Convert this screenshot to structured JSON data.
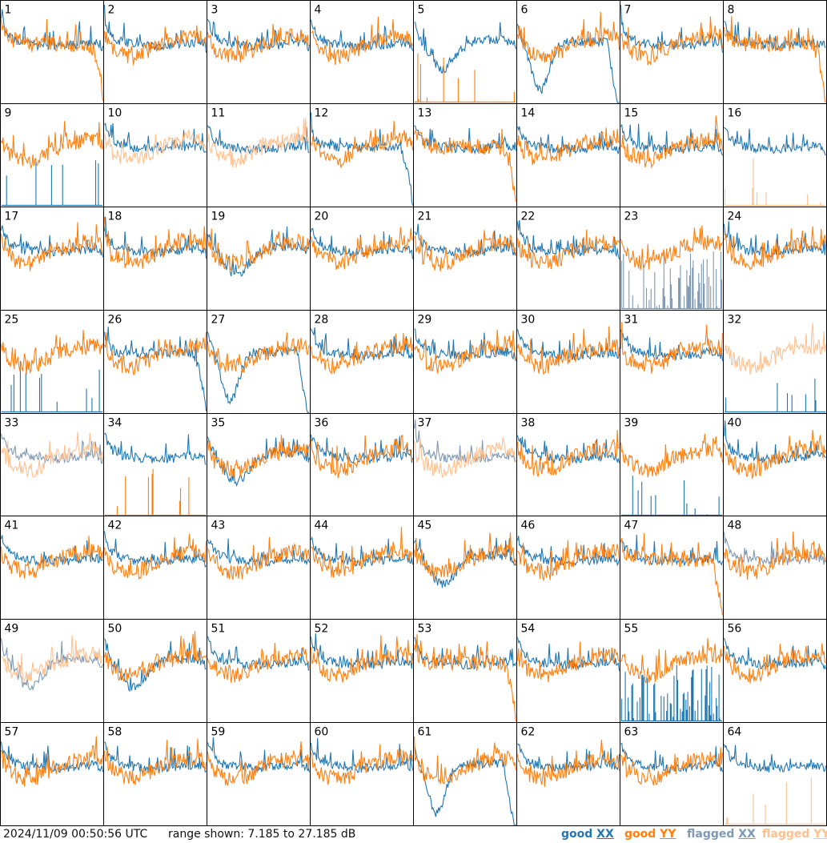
{
  "chart_data": {
    "type": "line",
    "grid": {
      "rows": 8,
      "cols": 8
    },
    "panels": [
      {
        "label": "1",
        "xx": "good",
        "yy": "good",
        "xx_shape": "flat",
        "yy_shape": "dropend"
      },
      {
        "label": "2",
        "xx": "good",
        "yy": "good",
        "xx_shape": "flat",
        "yy_shape": "noisy"
      },
      {
        "label": "3",
        "xx": "good",
        "yy": "good",
        "xx_shape": "flat",
        "yy_shape": "noisy"
      },
      {
        "label": "4",
        "xx": "good",
        "yy": "good",
        "xx_shape": "flat",
        "yy_shape": "noisy"
      },
      {
        "label": "5",
        "xx": "good",
        "yy": "good",
        "xx_shape": "bowl",
        "yy_shape": "spikes"
      },
      {
        "label": "6",
        "xx": "good",
        "yy": "good",
        "xx_shape": "deep",
        "yy_shape": "noisy"
      },
      {
        "label": "7",
        "xx": "good",
        "yy": "good",
        "xx_shape": "flat",
        "yy_shape": "noisy"
      },
      {
        "label": "8",
        "xx": "good",
        "yy": "good",
        "xx_shape": "flat",
        "yy_shape": "dropend"
      },
      {
        "label": "9",
        "xx": "good",
        "yy": "good",
        "xx_shape": "spikes",
        "yy_shape": "noisy"
      },
      {
        "label": "10",
        "xx": "good",
        "yy": "flagged",
        "xx_shape": "flat",
        "yy_shape": "noisy"
      },
      {
        "label": "11",
        "xx": "good",
        "yy": "flagged",
        "xx_shape": "flat",
        "yy_shape": "noisy"
      },
      {
        "label": "12",
        "xx": "good",
        "yy": "good",
        "xx_shape": "dropend",
        "yy_shape": "noisy"
      },
      {
        "label": "13",
        "xx": "good",
        "yy": "good",
        "xx_shape": "flat",
        "yy_shape": "dropend"
      },
      {
        "label": "14",
        "xx": "good",
        "yy": "good",
        "xx_shape": "flat",
        "yy_shape": "noisy"
      },
      {
        "label": "15",
        "xx": "good",
        "yy": "good",
        "xx_shape": "flat",
        "yy_shape": "noisy"
      },
      {
        "label": "16",
        "xx": "good",
        "yy": "flagged",
        "xx_shape": "flat",
        "yy_shape": "spikes"
      },
      {
        "label": "17",
        "xx": "good",
        "yy": "good",
        "xx_shape": "flat",
        "yy_shape": "noisy"
      },
      {
        "label": "18",
        "xx": "good",
        "yy": "good",
        "xx_shape": "flat",
        "yy_shape": "noisy"
      },
      {
        "label": "19",
        "xx": "good",
        "yy": "good",
        "xx_shape": "bowl",
        "yy_shape": "noisy"
      },
      {
        "label": "20",
        "xx": "good",
        "yy": "good",
        "xx_shape": "flat",
        "yy_shape": "noisy"
      },
      {
        "label": "21",
        "xx": "good",
        "yy": "good",
        "xx_shape": "flat",
        "yy_shape": "noisy"
      },
      {
        "label": "22",
        "xx": "good",
        "yy": "good",
        "xx_shape": "flat",
        "yy_shape": "noisy"
      },
      {
        "label": "23",
        "xx": "flagged",
        "yy": "good",
        "xx_shape": "junk",
        "yy_shape": "noisy"
      },
      {
        "label": "24",
        "xx": "good",
        "yy": "good",
        "xx_shape": "flat",
        "yy_shape": "noisy"
      },
      {
        "label": "25",
        "xx": "good",
        "yy": "good",
        "xx_shape": "spikes",
        "yy_shape": "noisy"
      },
      {
        "label": "26",
        "xx": "good",
        "yy": "good",
        "xx_shape": "dropend",
        "yy_shape": "noisy"
      },
      {
        "label": "27",
        "xx": "good",
        "yy": "good",
        "xx_shape": "deep",
        "yy_shape": "noisy"
      },
      {
        "label": "28",
        "xx": "good",
        "yy": "good",
        "xx_shape": "flat",
        "yy_shape": "noisy"
      },
      {
        "label": "29",
        "xx": "good",
        "yy": "good",
        "xx_shape": "flat",
        "yy_shape": "noisy"
      },
      {
        "label": "30",
        "xx": "good",
        "yy": "good",
        "xx_shape": "flat",
        "yy_shape": "noisy"
      },
      {
        "label": "31",
        "xx": "good",
        "yy": "good",
        "xx_shape": "flat",
        "yy_shape": "noisy"
      },
      {
        "label": "32",
        "xx": "good",
        "yy": "flagged",
        "xx_shape": "spikes",
        "yy_shape": "noisy"
      },
      {
        "label": "33",
        "xx": "flagged",
        "yy": "flagged",
        "xx_shape": "flat",
        "yy_shape": "noisy"
      },
      {
        "label": "34",
        "xx": "good",
        "yy": "good",
        "xx_shape": "flat",
        "yy_shape": "spikes"
      },
      {
        "label": "35",
        "xx": "good",
        "yy": "good",
        "xx_shape": "bowl",
        "yy_shape": "noisy"
      },
      {
        "label": "36",
        "xx": "good",
        "yy": "good",
        "xx_shape": "flat",
        "yy_shape": "noisy"
      },
      {
        "label": "37",
        "xx": "flagged",
        "yy": "flagged",
        "xx_shape": "flat",
        "yy_shape": "noisy"
      },
      {
        "label": "38",
        "xx": "good",
        "yy": "good",
        "xx_shape": "flat",
        "yy_shape": "noisy"
      },
      {
        "label": "39",
        "xx": "good",
        "yy": "good",
        "xx_shape": "spikes",
        "yy_shape": "noisy"
      },
      {
        "label": "40",
        "xx": "good",
        "yy": "good",
        "xx_shape": "flat",
        "yy_shape": "noisy"
      },
      {
        "label": "41",
        "xx": "good",
        "yy": "good",
        "xx_shape": "flat",
        "yy_shape": "noisy"
      },
      {
        "label": "42",
        "xx": "good",
        "yy": "good",
        "xx_shape": "flat",
        "yy_shape": "noisy"
      },
      {
        "label": "43",
        "xx": "good",
        "yy": "good",
        "xx_shape": "flat",
        "yy_shape": "noisy"
      },
      {
        "label": "44",
        "xx": "good",
        "yy": "good",
        "xx_shape": "flat",
        "yy_shape": "noisy"
      },
      {
        "label": "45",
        "xx": "good",
        "yy": "good",
        "xx_shape": "bowl",
        "yy_shape": "noisy"
      },
      {
        "label": "46",
        "xx": "good",
        "yy": "good",
        "xx_shape": "flat",
        "yy_shape": "noisy"
      },
      {
        "label": "47",
        "xx": "good",
        "yy": "good",
        "xx_shape": "flat",
        "yy_shape": "dropend"
      },
      {
        "label": "48",
        "xx": "flagged",
        "yy": "good",
        "xx_shape": "flat",
        "yy_shape": "noisy"
      },
      {
        "label": "49",
        "xx": "flagged",
        "yy": "flagged",
        "xx_shape": "bowl",
        "yy_shape": "noisy"
      },
      {
        "label": "50",
        "xx": "good",
        "yy": "good",
        "xx_shape": "bowl",
        "yy_shape": "noisy"
      },
      {
        "label": "51",
        "xx": "good",
        "yy": "good",
        "xx_shape": "flat",
        "yy_shape": "noisy"
      },
      {
        "label": "52",
        "xx": "good",
        "yy": "good",
        "xx_shape": "flat",
        "yy_shape": "noisy"
      },
      {
        "label": "53",
        "xx": "good",
        "yy": "good",
        "xx_shape": "flat",
        "yy_shape": "dropend"
      },
      {
        "label": "54",
        "xx": "good",
        "yy": "good",
        "xx_shape": "flat",
        "yy_shape": "noisy"
      },
      {
        "label": "55",
        "xx": "good",
        "yy": "good",
        "xx_shape": "junk",
        "yy_shape": "noisy"
      },
      {
        "label": "56",
        "xx": "good",
        "yy": "good",
        "xx_shape": "flat",
        "yy_shape": "noisy"
      },
      {
        "label": "57",
        "xx": "good",
        "yy": "good",
        "xx_shape": "flat",
        "yy_shape": "noisy"
      },
      {
        "label": "58",
        "xx": "good",
        "yy": "good",
        "xx_shape": "flat",
        "yy_shape": "noisy"
      },
      {
        "label": "59",
        "xx": "good",
        "yy": "good",
        "xx_shape": "flat",
        "yy_shape": "noisy"
      },
      {
        "label": "60",
        "xx": "good",
        "yy": "good",
        "xx_shape": "flat",
        "yy_shape": "noisy"
      },
      {
        "label": "61",
        "xx": "good",
        "yy": "good",
        "xx_shape": "deep",
        "yy_shape": "noisy"
      },
      {
        "label": "62",
        "xx": "good",
        "yy": "good",
        "xx_shape": "flat",
        "yy_shape": "noisy"
      },
      {
        "label": "63",
        "xx": "good",
        "yy": "good",
        "xx_shape": "flat",
        "yy_shape": "noisy"
      },
      {
        "label": "64",
        "xx": "good",
        "yy": "flagged",
        "xx_shape": "flat",
        "yy_shape": "spikes"
      }
    ],
    "legend": [
      {
        "label": "good",
        "pol": "XX",
        "color": "#1f77b4"
      },
      {
        "label": "good",
        "pol": "YY",
        "color": "#ff7f0e"
      },
      {
        "label": "flagged",
        "pol": "XX",
        "color": "#7f99b4"
      },
      {
        "label": "flagged",
        "pol": "YY",
        "color": "#ffc08e"
      }
    ],
    "colors": {
      "good_xx": "#1f77b4",
      "good_yy": "#ff7f0e",
      "flagged_xx": "#7f99b4",
      "flagged_yy": "#ffc08e"
    },
    "range_db": [
      7.185,
      27.185
    ]
  },
  "footer": {
    "timestamp": "2024/11/09 00:50:56 UTC",
    "range_text": "range shown: 7.185 to 27.185 dB"
  }
}
